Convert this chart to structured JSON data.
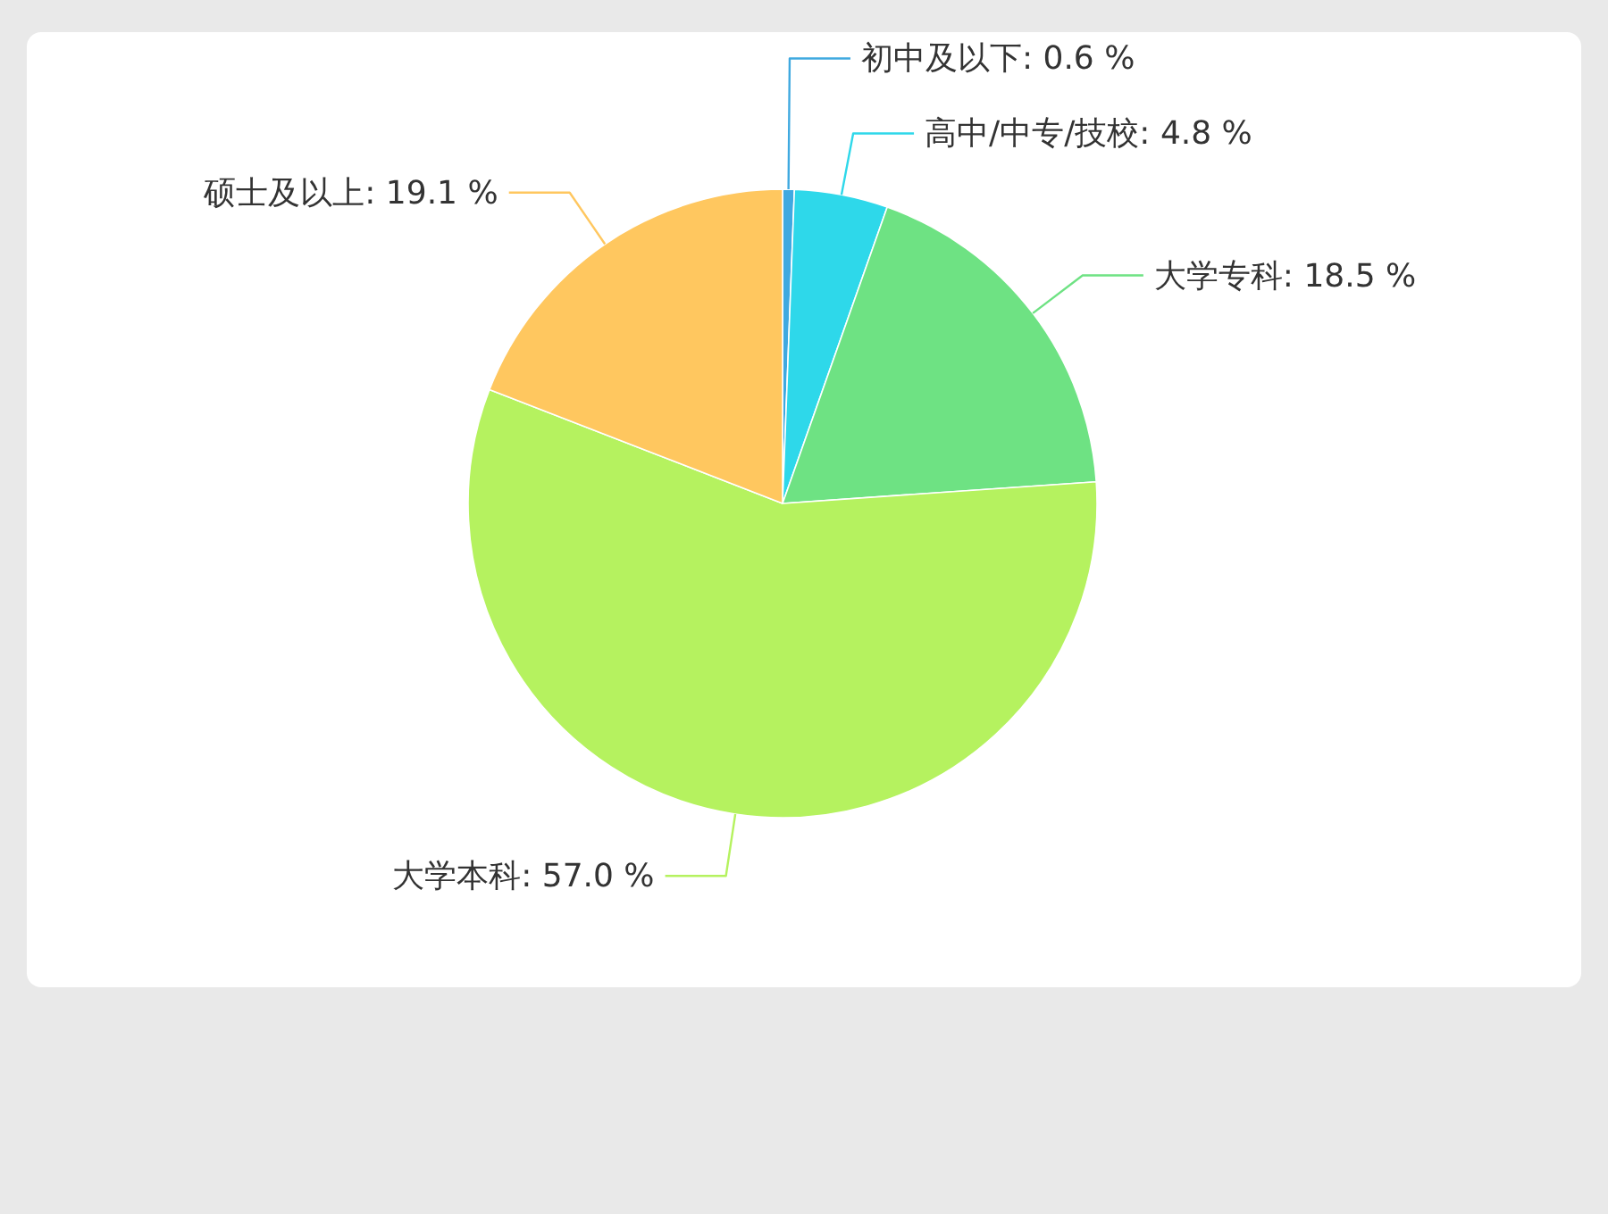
{
  "chart_data": {
    "type": "pie",
    "categories": [
      "初中及以下",
      "高中/中专/技校",
      "大学专科",
      "大学本科",
      "硕士及以上"
    ],
    "values": [
      0.6,
      4.8,
      18.5,
      57.0,
      19.1
    ],
    "value_labels": [
      "0.6 %",
      "4.8 %",
      "18.5 %",
      "57.0 %",
      "19.1 %"
    ],
    "colors": [
      "#3fa9e0",
      "#2ed8ea",
      "#6ee283",
      "#b5f25f",
      "#ffc75f"
    ],
    "legend": false
  }
}
